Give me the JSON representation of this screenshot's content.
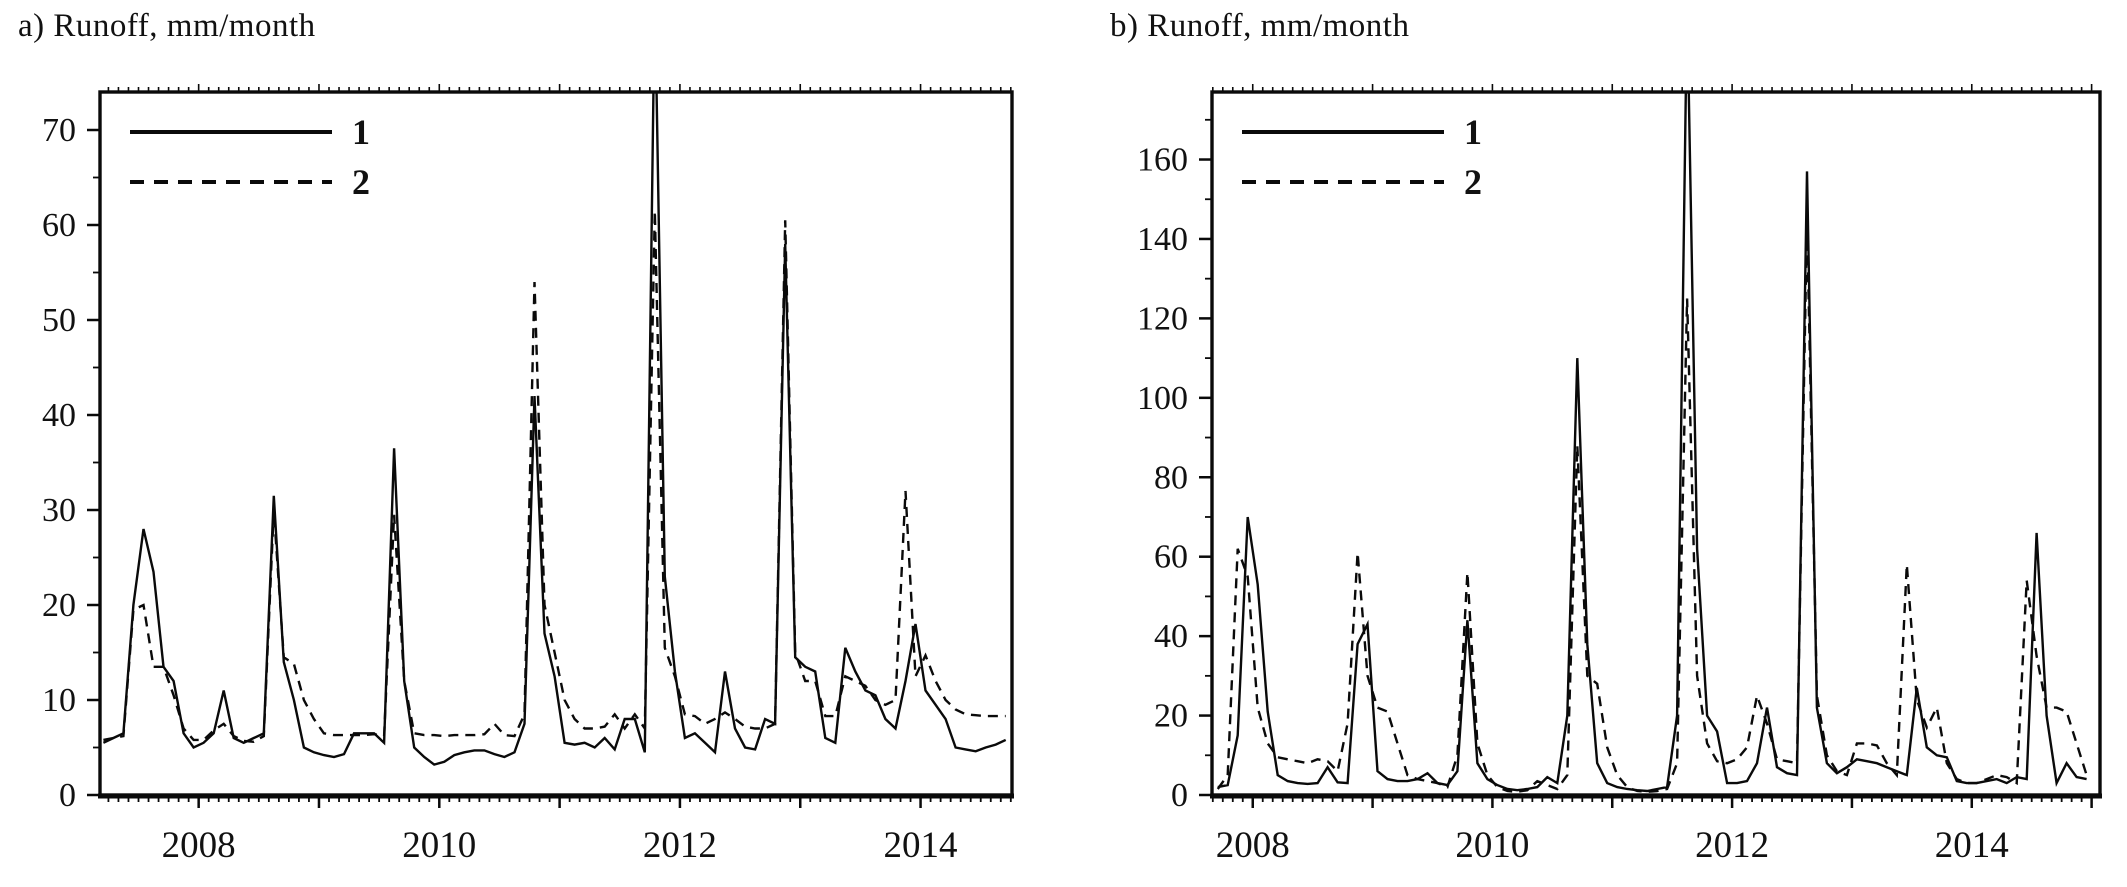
{
  "figure": {
    "background_color": "#ffffff",
    "line_color": "#0a0a0a",
    "text_color": "#111111"
  },
  "chart_data": [
    {
      "id": "a",
      "type": "line",
      "title": "a) Runoff, mm/month",
      "legend": {
        "entries": [
          "1",
          "2"
        ],
        "position": "top-left-inside"
      },
      "grid": "off",
      "x_axis": {
        "min": 2007.18,
        "max": 2014.76,
        "tick_years": [
          2008,
          2010,
          2012,
          2014
        ],
        "tick_labels": [
          "2008",
          "2010",
          "2012",
          "2014"
        ],
        "minor_tick_interval_months": 1
      },
      "y_axis": {
        "min": 0,
        "max_display": 74,
        "major_tick_step": 10,
        "minor_tick_step": 5,
        "tick_values": [
          0,
          10,
          20,
          30,
          40,
          50,
          60,
          70
        ],
        "tick_labels": [
          "0",
          "10",
          "20",
          "30",
          "40",
          "50",
          "60",
          "70"
        ]
      },
      "x_start_year_decimal": 2007.208,
      "x_step_years": 0.08333,
      "note_clipped_peak": "series 1 October 2011 peak exceeds axis top and is clipped by frame",
      "series": [
        {
          "name": "1",
          "style": "solid",
          "values": [
            5.5,
            6,
            6.5,
            20,
            28,
            23.5,
            13.5,
            12,
            6.5,
            5,
            5.5,
            6.5,
            11,
            6,
            5.5,
            6,
            6.5,
            31.5,
            14,
            10,
            5,
            4.5,
            4.2,
            4,
            4.3,
            6.5,
            6.5,
            6.5,
            5.5,
            36.5,
            12,
            5,
            4,
            3.2,
            3.5,
            4.2,
            4.5,
            4.7,
            4.7,
            4.3,
            4,
            4.5,
            7.5,
            42,
            17,
            12.5,
            5.5,
            5.3,
            5.5,
            5,
            6,
            4.8,
            8,
            8,
            4.5,
            85,
            23,
            13,
            6,
            6.5,
            5.5,
            4.5,
            13,
            7,
            5,
            4.8,
            8,
            7.5,
            58,
            14.5,
            13.5,
            13,
            6,
            5.5,
            15.5,
            13,
            11,
            10.5,
            8,
            7,
            12,
            18,
            11,
            9.5,
            8,
            5,
            4.8,
            4.6,
            5,
            5.3,
            5.8
          ]
        },
        {
          "name": "2",
          "style": "dashed",
          "values": [
            5.8,
            6,
            6.2,
            19.5,
            20,
            13.5,
            13.5,
            10.5,
            7,
            5.8,
            5.8,
            6.8,
            7.5,
            6.2,
            5.7,
            5.6,
            6.2,
            30,
            14.5,
            13.8,
            10,
            8,
            6.5,
            6.3,
            6.3,
            6.3,
            6.3,
            6.4,
            6.2,
            29.5,
            12,
            6.5,
            6.3,
            6.3,
            6.2,
            6.3,
            6.3,
            6.3,
            6.4,
            7.5,
            6.3,
            6.2,
            8.5,
            54,
            20,
            15,
            10,
            8,
            7,
            7,
            7.2,
            8.5,
            7,
            8.5,
            7,
            61.5,
            15.5,
            12.5,
            8.5,
            8.3,
            7.5,
            8,
            8.7,
            8,
            7.2,
            7,
            7,
            7.5,
            60.5,
            15,
            12,
            12,
            8.3,
            8.3,
            12.5,
            12,
            11.5,
            10,
            9.5,
            10,
            32,
            12.5,
            14.7,
            12,
            10,
            9,
            8.5,
            8.4,
            8.3,
            8.3,
            8.3
          ]
        }
      ]
    },
    {
      "id": "b",
      "type": "line",
      "title": "b) Runoff, mm/month",
      "legend": {
        "entries": [
          "1",
          "2"
        ],
        "position": "top-left-inside"
      },
      "grid": "off",
      "x_axis": {
        "min": 2007.66,
        "max": 2015.07,
        "tick_years": [
          2008,
          2010,
          2012,
          2014
        ],
        "tick_labels": [
          "2008",
          "2010",
          "2012",
          "2014"
        ],
        "minor_tick_interval_months": 1
      },
      "y_axis": {
        "min": 0,
        "max_display": 177,
        "major_tick_step": 20,
        "minor_tick_step": 10,
        "tick_values": [
          0,
          20,
          40,
          60,
          80,
          100,
          120,
          140,
          160
        ],
        "tick_labels": [
          "0",
          "20",
          "40",
          "60",
          "80",
          "100",
          "120",
          "140",
          "160"
        ]
      },
      "x_start_year_decimal": 2007.708,
      "x_step_years": 0.08333,
      "note_clipped_peak": "series 1 August 2011 peak exceeds axis top and is clipped by frame",
      "series": [
        {
          "name": "1",
          "style": "solid",
          "values": [
            2,
            2.5,
            15,
            70,
            53,
            21,
            5,
            3.5,
            3,
            2.8,
            3,
            7,
            3.2,
            3,
            38,
            43,
            6,
            4,
            3.5,
            3.5,
            4,
            5.5,
            3,
            2.5,
            6,
            44,
            8,
            4,
            2.5,
            1.5,
            1.2,
            1.5,
            2,
            4.5,
            3,
            20,
            110,
            38,
            8,
            3,
            2,
            1.5,
            1.2,
            1,
            1.5,
            2,
            20,
            200,
            62,
            20,
            16,
            3,
            3,
            3.5,
            8,
            22,
            7,
            5.5,
            5,
            157,
            22,
            8,
            5.5,
            7,
            9,
            8.5,
            8,
            7,
            6,
            5,
            27,
            12,
            10,
            9.5,
            3.5,
            3,
            3,
            3.5,
            4,
            3,
            4.5,
            4,
            66,
            20,
            3,
            8,
            4.5,
            4
          ]
        },
        {
          "name": "2",
          "style": "dashed",
          "values": [
            1.5,
            5,
            62,
            55,
            22,
            13,
            9.5,
            9,
            8.5,
            8,
            9,
            8.5,
            6,
            18,
            61,
            30,
            22,
            21,
            13,
            5,
            4,
            3.5,
            3,
            2,
            10,
            56,
            13,
            5,
            2,
            1,
            0.8,
            1.2,
            3.5,
            2.5,
            1.5,
            5,
            88,
            30,
            28,
            12,
            5,
            2,
            1,
            0.8,
            1,
            1.5,
            8,
            125,
            30,
            13,
            8.5,
            8,
            9,
            12,
            25,
            18,
            9,
            8.5,
            8,
            145,
            25,
            10,
            6,
            5,
            13,
            13,
            12.5,
            8,
            5,
            58,
            24,
            17,
            22,
            8,
            4,
            3,
            3,
            4,
            5,
            4.5,
            3,
            54,
            35,
            22,
            22,
            21,
            13,
            5
          ]
        }
      ]
    }
  ]
}
